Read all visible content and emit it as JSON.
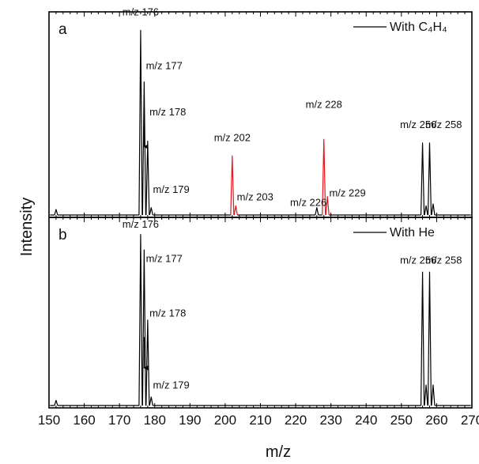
{
  "chart_data": {
    "type": "line",
    "xlabel": "m/z",
    "ylabel": "Intensity",
    "xlim": [
      150,
      270
    ],
    "x_ticks": [
      150,
      160,
      170,
      180,
      190,
      200,
      210,
      220,
      230,
      240,
      250,
      260,
      270
    ],
    "colors": {
      "default": "#000000",
      "highlight": "#e8141c"
    },
    "panels": [
      {
        "id": "a",
        "letter": "a",
        "legend": {
          "label": "With C₄H₄",
          "placement": "top-right"
        },
        "ylim": [
          0,
          1.1
        ],
        "peaks": [
          {
            "mz": 152,
            "intensity": 0.03,
            "color": "default"
          },
          {
            "mz": 176,
            "intensity": 1.0,
            "color": "default"
          },
          {
            "mz": 177,
            "intensity": 0.72,
            "color": "default"
          },
          {
            "mz": 178,
            "intensity": 0.4,
            "color": "default"
          },
          {
            "mz": 179,
            "intensity": 0.04,
            "color": "default"
          },
          {
            "mz": 202,
            "intensity": 0.32,
            "color": "highlight"
          },
          {
            "mz": 203,
            "intensity": 0.05,
            "color": "highlight"
          },
          {
            "mz": 226,
            "intensity": 0.04,
            "color": "default"
          },
          {
            "mz": 228,
            "intensity": 0.41,
            "color": "highlight"
          },
          {
            "mz": 229,
            "intensity": 0.1,
            "color": "highlight"
          },
          {
            "mz": 256,
            "intensity": 0.39,
            "color": "default"
          },
          {
            "mz": 257,
            "intensity": 0.05,
            "color": "default"
          },
          {
            "mz": 258,
            "intensity": 0.39,
            "color": "default"
          },
          {
            "mz": 259,
            "intensity": 0.06,
            "color": "default"
          }
        ],
        "labels": [
          {
            "text": "m/z 176",
            "mz": 176,
            "intensity": 1.08,
            "anchor": "middle"
          },
          {
            "text": "m/z 177",
            "mz": 177.5,
            "intensity": 0.79,
            "anchor": "start"
          },
          {
            "text": "m/z 178",
            "mz": 178.5,
            "intensity": 0.54,
            "anchor": "start"
          },
          {
            "text": "m/z 179",
            "mz": 179.5,
            "intensity": 0.12,
            "anchor": "start"
          },
          {
            "text": "m/z 202",
            "mz": 202,
            "intensity": 0.4,
            "anchor": "middle"
          },
          {
            "text": "m/z 203",
            "mz": 203.3,
            "intensity": 0.08,
            "anchor": "start"
          },
          {
            "text": "m/z 226",
            "mz": 223.6,
            "intensity": 0.05,
            "anchor": "middle"
          },
          {
            "text": "m/z 228",
            "mz": 228,
            "intensity": 0.58,
            "anchor": "middle"
          },
          {
            "text": "m/z 229",
            "mz": 229.5,
            "intensity": 0.1,
            "anchor": "start"
          },
          {
            "text": "m/z 256",
            "mz": 254.8,
            "intensity": 0.47,
            "anchor": "middle"
          },
          {
            "text": "m/z 258",
            "mz": 262,
            "intensity": 0.47,
            "anchor": "middle"
          }
        ],
        "arrows": [
          {
            "mz": 177,
            "from": 0.5,
            "to": 0.37
          }
        ]
      },
      {
        "id": "b",
        "letter": "b",
        "legend": {
          "label": "With He",
          "placement": "top-right"
        },
        "ylim": [
          0,
          1.1
        ],
        "peaks": [
          {
            "mz": 152,
            "intensity": 0.03,
            "color": "default"
          },
          {
            "mz": 176,
            "intensity": 1.0,
            "color": "default"
          },
          {
            "mz": 177,
            "intensity": 0.91,
            "color": "default"
          },
          {
            "mz": 178,
            "intensity": 0.5,
            "color": "default"
          },
          {
            "mz": 179,
            "intensity": 0.05,
            "color": "default"
          },
          {
            "mz": 256,
            "intensity": 0.78,
            "color": "default"
          },
          {
            "mz": 257,
            "intensity": 0.12,
            "color": "default"
          },
          {
            "mz": 258,
            "intensity": 0.78,
            "color": "default"
          },
          {
            "mz": 259,
            "intensity": 0.12,
            "color": "default"
          }
        ],
        "labels": [
          {
            "text": "m/z 176",
            "mz": 176,
            "intensity": 1.04,
            "anchor": "middle"
          },
          {
            "text": "m/z 177",
            "mz": 177.5,
            "intensity": 0.84,
            "anchor": "start"
          },
          {
            "text": "m/z 178",
            "mz": 178.5,
            "intensity": 0.52,
            "anchor": "start"
          },
          {
            "text": "m/z 179",
            "mz": 179.5,
            "intensity": 0.1,
            "anchor": "start"
          },
          {
            "text": "m/z 256",
            "mz": 254.8,
            "intensity": 0.83,
            "anchor": "middle"
          },
          {
            "text": "m/z 258",
            "mz": 262,
            "intensity": 0.83,
            "anchor": "middle"
          }
        ],
        "arrows": [
          {
            "mz": 177,
            "from": 0.4,
            "to": 0.22
          }
        ]
      }
    ]
  }
}
